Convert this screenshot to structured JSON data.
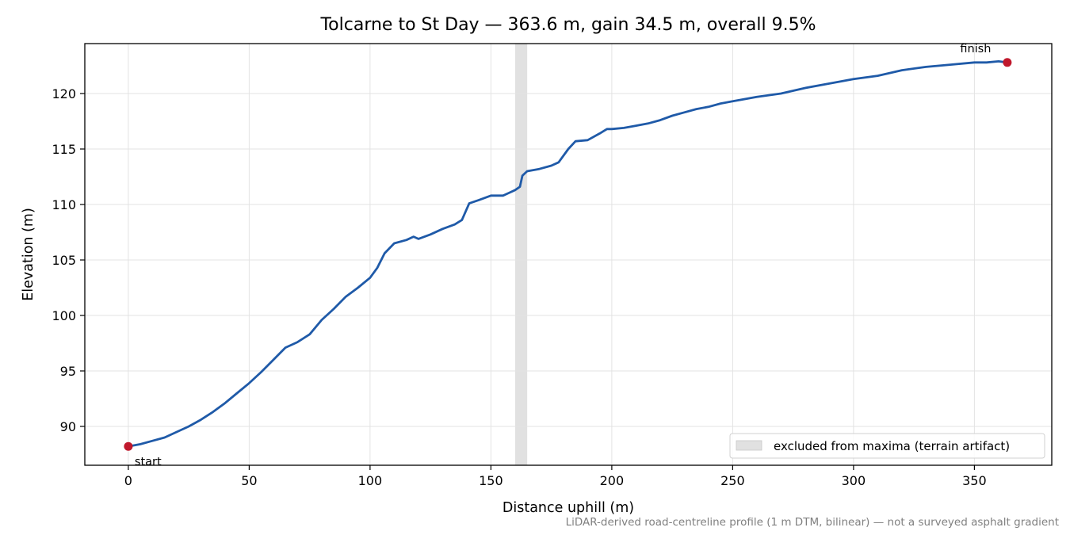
{
  "chart_data": {
    "type": "line",
    "title": "Tolcarne to St Day — 363.6 m, gain 34.5 m, overall 9.5%",
    "xlabel": "Distance uphill (m)",
    "ylabel": "Elevation (m)",
    "xlim": [
      -18,
      382
    ],
    "ylim": [
      86.5,
      124.5
    ],
    "xticks": [
      0,
      50,
      100,
      150,
      200,
      250,
      300,
      350
    ],
    "yticks": [
      90,
      95,
      100,
      105,
      110,
      115,
      120
    ],
    "grid": true,
    "legend_position": "lower-right",
    "footnote": "LiDAR-derived road-centreline profile (1 m DTM, bilinear) — not a surveyed asphalt gradient",
    "line_color": "#1f5aa8",
    "marker_color": "#c0182c",
    "span_color": "#d9d9d9",
    "excluded_span": {
      "x0": 160,
      "x1": 165,
      "label": "excluded from maxima (terrain artifact)"
    },
    "annotations": [
      {
        "text": "start",
        "x": 0,
        "y": 88.2
      },
      {
        "text": "finish",
        "x": 363.6,
        "y": 122.8
      }
    ],
    "series": [
      {
        "x": [
          0,
          5,
          10,
          15,
          20,
          25,
          30,
          35,
          40,
          45,
          50,
          55,
          60,
          65,
          70,
          75,
          80,
          85,
          90,
          95,
          100,
          103,
          106,
          110,
          115,
          118,
          120,
          125,
          130,
          135,
          138,
          141,
          145,
          150,
          155,
          158,
          160,
          162,
          163,
          165,
          170,
          175,
          178,
          182,
          185,
          190,
          195,
          198,
          200,
          205,
          210,
          215,
          220,
          225,
          230,
          235,
          240,
          245,
          250,
          260,
          270,
          280,
          290,
          300,
          310,
          320,
          330,
          340,
          350,
          355,
          360,
          363.6
        ],
        "y": [
          88.2,
          88.4,
          88.7,
          89.0,
          89.5,
          90.0,
          90.6,
          91.3,
          92.1,
          93.0,
          93.9,
          94.9,
          96.0,
          97.1,
          97.6,
          98.3,
          99.6,
          100.6,
          101.7,
          102.5,
          103.4,
          104.3,
          105.6,
          106.5,
          106.8,
          107.1,
          106.9,
          107.3,
          107.8,
          108.2,
          108.6,
          110.1,
          110.4,
          110.8,
          110.8,
          111.1,
          111.3,
          111.6,
          112.6,
          113.0,
          113.2,
          113.5,
          113.8,
          115.0,
          115.7,
          115.8,
          116.4,
          116.8,
          116.8,
          116.9,
          117.1,
          117.3,
          117.6,
          118.0,
          118.3,
          118.6,
          118.8,
          119.1,
          119.3,
          119.7,
          120.0,
          120.5,
          120.9,
          121.3,
          121.6,
          122.1,
          122.4,
          122.6,
          122.8,
          122.8,
          122.9,
          122.8
        ]
      }
    ]
  }
}
